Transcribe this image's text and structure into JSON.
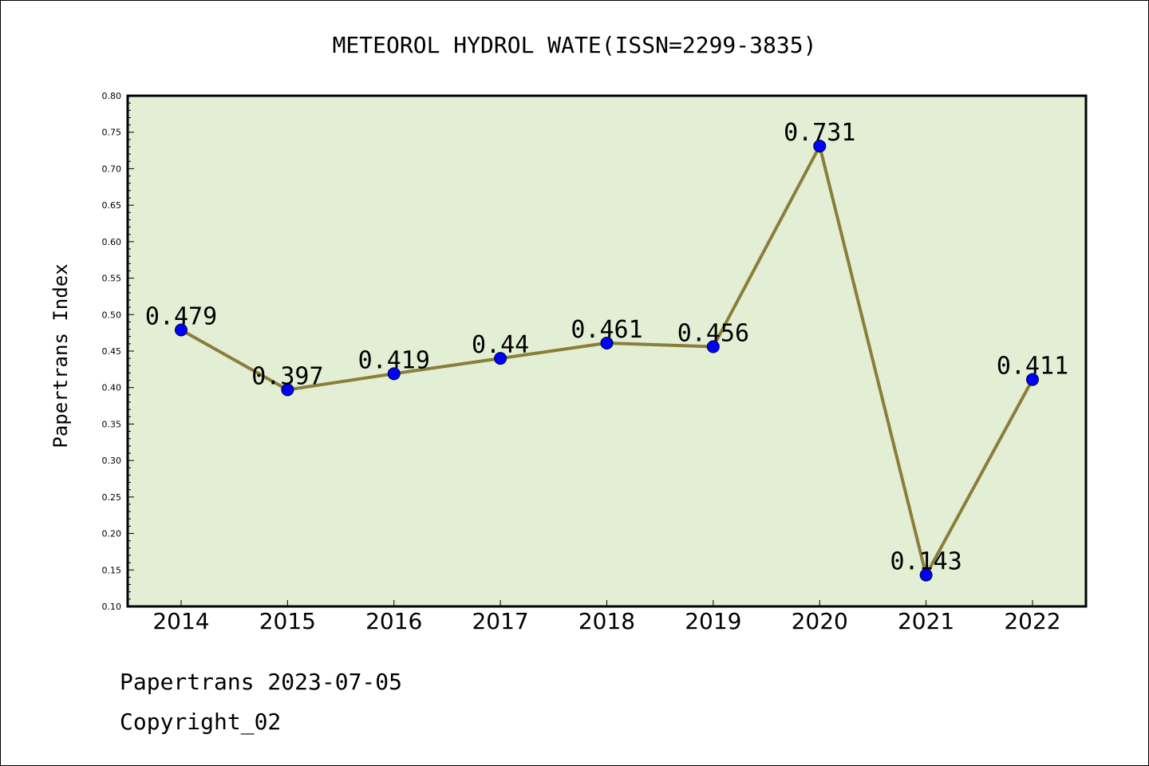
{
  "chart_data": {
    "type": "line",
    "title": "METEOROL HYDROL WATE(ISSN=2299-3835)",
    "ylabel": "Papertrans Index",
    "xlabel": "",
    "categories": [
      "2014",
      "2015",
      "2016",
      "2017",
      "2018",
      "2019",
      "2020",
      "2021",
      "2022"
    ],
    "series": [
      {
        "values": [
          0.479,
          0.397,
          0.419,
          0.44,
          0.461,
          0.456,
          0.731,
          0.143,
          0.411
        ]
      }
    ],
    "data_labels": [
      "0.479",
      "0.397",
      "0.419",
      "0.44",
      "0.461",
      "0.456",
      "0.731",
      "0.143",
      "0.411"
    ],
    "ylim": [
      0.1,
      0.8
    ],
    "yticks": [
      "0.10",
      "0.15",
      "0.20",
      "0.25",
      "0.30",
      "0.35",
      "0.40",
      "0.45",
      "0.50",
      "0.55",
      "0.60",
      "0.65",
      "0.70",
      "0.75",
      "0.80"
    ],
    "grid": false,
    "legend": "none",
    "colors": {
      "plot_background": "#e2efd5",
      "line": "#8b7d3a",
      "marker": "#0000ff"
    }
  },
  "footer": {
    "line1": "Papertrans 2023-07-05",
    "line2": "Copyright_02"
  }
}
